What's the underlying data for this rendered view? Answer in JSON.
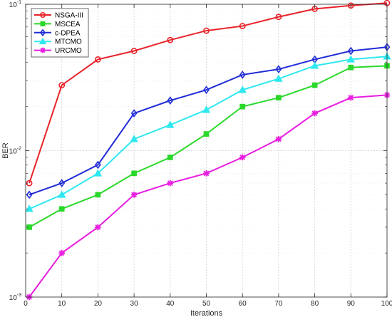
{
  "chart_data": {
    "type": "line",
    "title": "",
    "xlabel": "Iterations",
    "ylabel": "BER",
    "yscale": "log",
    "xlim": [
      0,
      100
    ],
    "ylim": [
      0.001,
      0.1
    ],
    "x_ticks": [
      0,
      10,
      20,
      30,
      40,
      50,
      60,
      70,
      80,
      90,
      100
    ],
    "y_ticks": [
      {
        "value": 0.001,
        "base": "10",
        "exp": "-3"
      },
      {
        "value": 0.01,
        "base": "10",
        "exp": "-2"
      },
      {
        "value": 0.1,
        "base": "10",
        "exp": "-1"
      }
    ],
    "grid": true,
    "legend": "top-left",
    "x": [
      1,
      10,
      20,
      30,
      40,
      50,
      60,
      70,
      80,
      90,
      100
    ],
    "series": [
      {
        "name": "NSGA-III",
        "color": "#e8232a",
        "marker": "circle",
        "values": [
          0.006,
          0.028,
          0.042,
          0.048,
          0.057,
          0.066,
          0.071,
          0.082,
          0.093,
          0.098,
          0.102
        ]
      },
      {
        "name": "MSCEA",
        "color": "#2ad82a",
        "marker": "square",
        "values": [
          0.003,
          0.004,
          0.005,
          0.007,
          0.009,
          0.013,
          0.02,
          0.023,
          0.028,
          0.037,
          0.038
        ]
      },
      {
        "name": "c-DPEA",
        "color": "#1f2bd6",
        "marker": "diamond",
        "values": [
          0.005,
          0.006,
          0.008,
          0.018,
          0.022,
          0.026,
          0.033,
          0.036,
          0.042,
          0.048,
          0.051
        ]
      },
      {
        "name": "MTCMO",
        "color": "#2ee8f0",
        "marker": "triangle",
        "values": [
          0.004,
          0.005,
          0.007,
          0.012,
          0.015,
          0.019,
          0.026,
          0.031,
          0.038,
          0.042,
          0.044
        ]
      },
      {
        "name": "URCMO",
        "color": "#e81ee0",
        "marker": "star",
        "values": [
          0.001,
          0.002,
          0.003,
          0.005,
          0.006,
          0.007,
          0.009,
          0.012,
          0.018,
          0.023,
          0.024
        ]
      }
    ]
  }
}
